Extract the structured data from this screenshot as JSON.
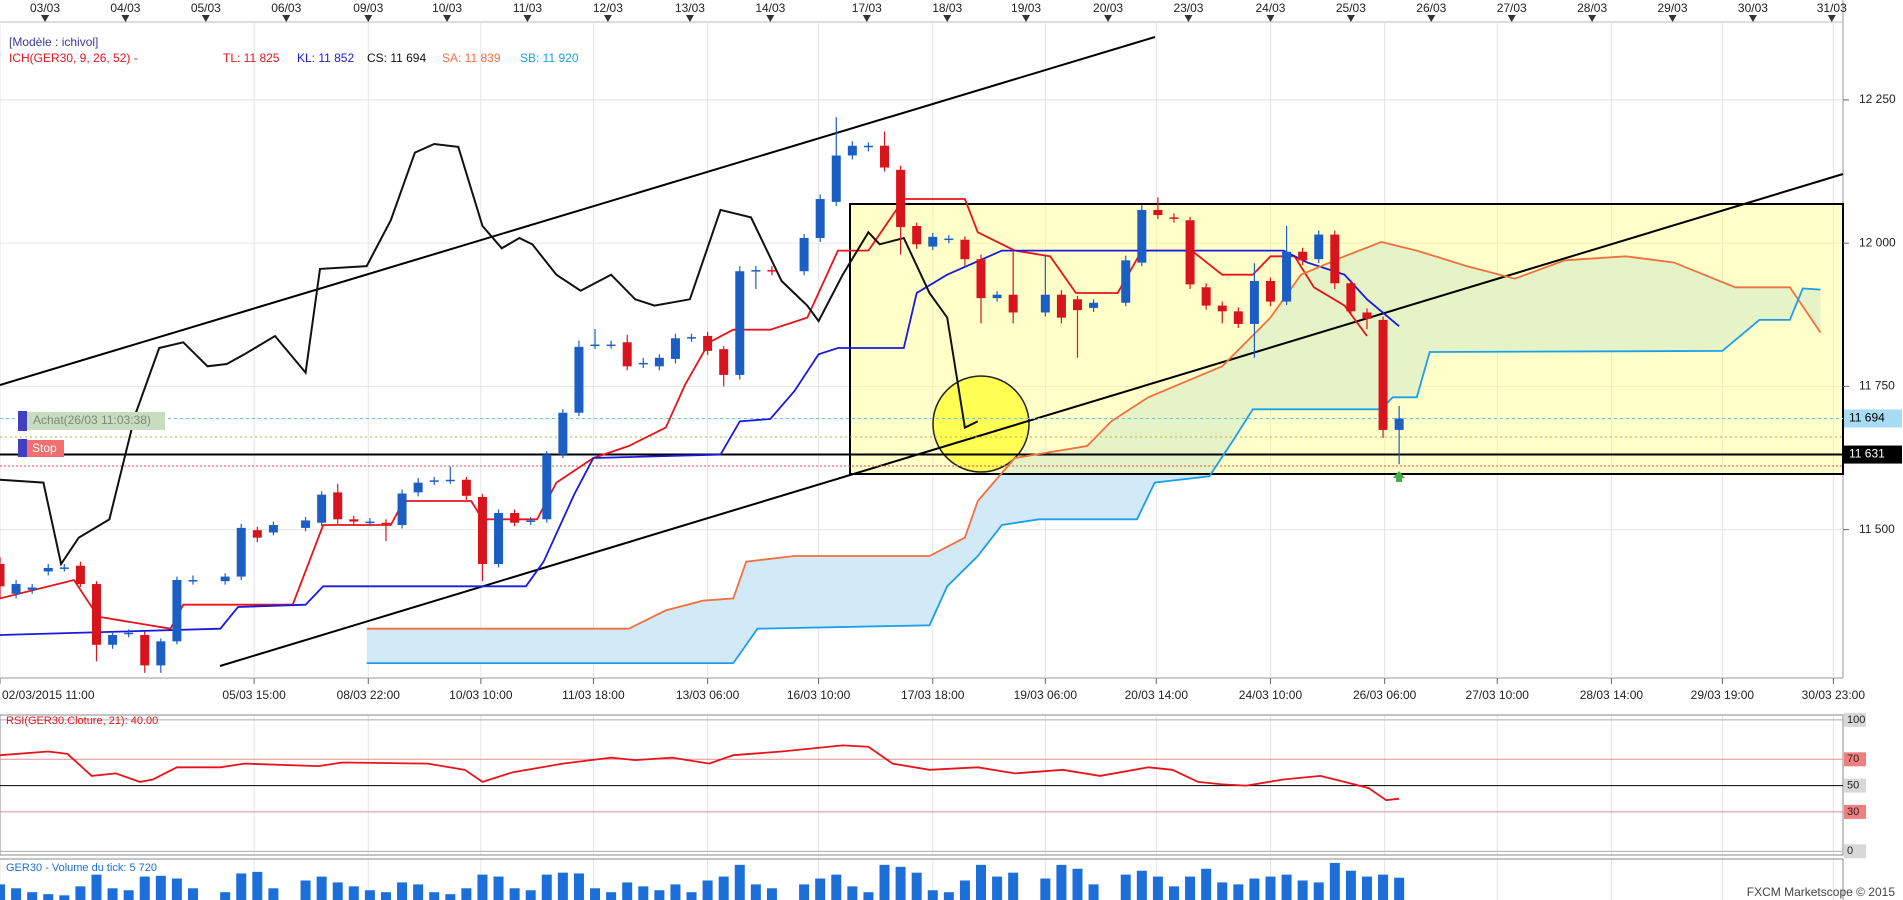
{
  "chart_data": [
    {
      "type": "candlestick",
      "model": "[Modèle : ichivol]",
      "indicator": "ICH(GER30, 9, 26, 52) -",
      "up_color": "#1c5fc4",
      "down_color": "#d8141c",
      "open": [
        11440,
        11388,
        11395,
        11427,
        11433,
        11437,
        11405,
        11299,
        11318,
        11316,
        11263,
        11305,
        11410,
        null,
        11410,
        11418,
        11499,
        11495,
        null,
        11503,
        11512,
        11565,
        11518,
        11512,
        11512,
        11508,
        11565,
        11584,
        11586,
        11587,
        11557,
        11440,
        11529,
        11514,
        11518,
        11631,
        11704,
        11821,
        11823,
        11827,
        11789,
        11785,
        11798,
        11834,
        11838,
        11815,
        11770,
        11951,
        11953,
        null,
        11951,
        12009,
        12072,
        12153,
        12168,
        12170,
        12128,
        12030,
        11994,
        12006,
        12006,
        11972,
        11904,
        11910,
        null,
        11879,
        11910,
        11902,
        11887,
        null,
        11896,
        11966,
        12058,
        12045,
        12040,
        11923,
        11891,
        11881,
        11859,
        11934,
        11898,
        11985,
        11972,
        12015,
        11930,
        11879,
        11866,
        11674
      ],
      "high": [
        11452,
        11412,
        11405,
        11440,
        11440,
        11444,
        11410,
        11322,
        11326,
        11322,
        11310,
        11418,
        11420,
        null,
        11424,
        11510,
        11505,
        11514,
        null,
        11522,
        11567,
        11580,
        11524,
        11520,
        11518,
        11570,
        11590,
        11592,
        11610,
        11592,
        11562,
        11535,
        11535,
        11522,
        11637,
        11710,
        11830,
        11850,
        11830,
        11840,
        11800,
        11806,
        11842,
        11842,
        11845,
        11820,
        11960,
        11960,
        11960,
        null,
        12016,
        12085,
        12220,
        12178,
        12176,
        12195,
        12135,
        12036,
        12018,
        12014,
        12012,
        11980,
        11916,
        11990,
        null,
        11980,
        11918,
        11908,
        11902,
        null,
        11978,
        12066,
        12080,
        12052,
        12046,
        11930,
        11898,
        11888,
        11965,
        11940,
        12030,
        11992,
        12022,
        12022,
        11936,
        11886,
        11872,
        11716
      ],
      "low": [
        11380,
        11380,
        11388,
        11420,
        11427,
        11400,
        11270,
        11292,
        11312,
        11250,
        11250,
        11300,
        11404,
        null,
        11404,
        11412,
        11478,
        11490,
        null,
        11497,
        11506,
        11510,
        11508,
        11506,
        11480,
        11502,
        11558,
        11578,
        11580,
        11552,
        11410,
        11434,
        11506,
        11508,
        11512,
        11625,
        11698,
        11815,
        11816,
        11778,
        11782,
        11778,
        11790,
        11828,
        11805,
        11750,
        11762,
        11920,
        11944,
        null,
        11944,
        12002,
        12065,
        12146,
        12160,
        12125,
        11980,
        11990,
        11988,
        12000,
        11960,
        11860,
        11898,
        11860,
        null,
        11872,
        11860,
        11800,
        11880,
        null,
        11890,
        11960,
        12042,
        12036,
        11920,
        11884,
        11860,
        11852,
        11800,
        11890,
        11892,
        11962,
        11965,
        11920,
        11874,
        11850,
        11660,
        11614
      ],
      "close": [
        11401,
        11405,
        11399,
        11433,
        11434,
        11405,
        11299,
        11316,
        11320,
        11263,
        11305,
        11412,
        11412,
        null,
        11418,
        11503,
        11486,
        11508,
        null,
        11516,
        11561,
        11518,
        11514,
        11514,
        11510,
        11563,
        11582,
        11586,
        11587,
        11559,
        11440,
        11529,
        11512,
        11516,
        11631,
        11704,
        11819,
        11823,
        11823,
        11785,
        11791,
        11800,
        11834,
        11836,
        11812,
        11770,
        11951,
        11953,
        11951,
        null,
        12009,
        12077,
        12153,
        12170,
        12170,
        12132,
        12028,
        11998,
        12011,
        12008,
        11972,
        11904,
        11910,
        11879,
        null,
        11910,
        11870,
        11883,
        11896,
        null,
        11970,
        12058,
        12049,
        12043,
        11928,
        11891,
        11881,
        11859,
        11934,
        11898,
        11985,
        11970,
        12015,
        11930,
        11881,
        11868,
        11674,
        11694
      ],
      "series": [
        {
          "name": "TL: 11 825",
          "color": "#e8141c",
          "x": [
            0,
            4.6,
            6.1,
            10.6,
            11.4,
            18.2,
            20.1,
            24.3,
            25.1,
            29.3,
            30.0,
            33.4,
            34.6,
            36.9,
            39.1,
            41.4,
            42.6,
            44.1,
            45.6,
            47.9,
            50.2,
            52.1,
            54.0,
            56.2,
            60.0,
            60.8,
            63.1,
            65.3,
            66.9,
            69.5,
            71.0,
            74.1,
            76.0,
            77.9,
            79.0,
            80.5,
            81.7,
            83.6,
            85.0
          ],
          "values": [
            11380,
            11412,
            11348,
            11327,
            11369,
            11369,
            11508,
            11508,
            11550,
            11550,
            11518,
            11518,
            11582,
            11625,
            11646,
            11678,
            11753,
            11827,
            11849,
            11849,
            11870,
            11987,
            11987,
            12077,
            12077,
            12019,
            11987,
            11977,
            11913,
            11913,
            11987,
            11987,
            11945,
            11945,
            11977,
            11977,
            11923,
            11891,
            11838
          ]
        },
        {
          "name": "KL: 11 852",
          "color": "#1a1ae0",
          "x": [
            0,
            13.7,
            14.8,
            19.0,
            20.1,
            32.7,
            33.8,
            35.7,
            36.9,
            44.8,
            46.0,
            47.9,
            49.4,
            50.9,
            52.1,
            56.2,
            57.0,
            58.9,
            62.3,
            79.8,
            81.3,
            83.6,
            85.0,
            87.0
          ],
          "values": [
            11316,
            11327,
            11365,
            11369,
            11401,
            11401,
            11444,
            11561,
            11625,
            11631,
            11689,
            11693,
            11742,
            11806,
            11817,
            11817,
            11913,
            11945,
            11987,
            11987,
            11966,
            11945,
            11902,
            11855
          ]
        },
        {
          "name": "CS: 11 694",
          "color": "#111111",
          "x": [
            0,
            2.7,
            3.8,
            4.9,
            6.8,
            8.4,
            9.9,
            11.4,
            12.9,
            14.1,
            15.2,
            17.1,
            19.0,
            19.9,
            22.8,
            24.3,
            25.8,
            27.0,
            28.5,
            30.0,
            31.2,
            32.3,
            33.1,
            34.6,
            36.1,
            38.0,
            39.5,
            40.7,
            42.9,
            44.8,
            46.7,
            48.6,
            50.2,
            50.9,
            52.4,
            54.0,
            54.7,
            56.2,
            57.8,
            58.9,
            60.0,
            60.8
          ],
          "values": [
            11587,
            11582,
            11440,
            11486,
            11518,
            11700,
            11817,
            11827,
            11785,
            11789,
            11806,
            11838,
            11774,
            11955,
            11960,
            12040,
            12158,
            12173,
            12168,
            12030,
            11991,
            12009,
            11998,
            11945,
            11917,
            11945,
            11902,
            11891,
            11902,
            12058,
            12045,
            11934,
            11891,
            11864,
            11945,
            12019,
            11998,
            12009,
            11913,
            11870,
            11678,
            11689
          ]
        },
        {
          "name": "SA: 11 839",
          "color": "#f07040",
          "x": [
            22.8,
            39.1,
            41.4,
            43.7,
            45.6,
            46.4,
            49.4,
            57.8,
            60.0,
            60.8,
            63.1,
            67.6,
            69.1,
            71.4,
            76.0,
            79.0,
            80.9,
            83.6,
            85.9,
            88.1,
            91.2,
            94.2,
            97.3,
            101.1,
            104.1,
            107.9,
            111.3,
            113.2
          ],
          "values": [
            11327,
            11327,
            11359,
            11376,
            11380,
            11444,
            11454,
            11454,
            11486,
            11550,
            11625,
            11646,
            11689,
            11731,
            11785,
            11870,
            11945,
            11977,
            12002,
            11987,
            11960,
            11938,
            11970,
            11977,
            11966,
            11923,
            11923,
            11844
          ]
        },
        {
          "name": "SB: 11 920",
          "color": "#1aa0e8",
          "x": [
            22.8,
            45.6,
            47.1,
            57.8,
            58.9,
            60.8,
            62.3,
            64.6,
            70.7,
            71.8,
            75.2,
            76.7,
            77.9,
            85.9,
            86.6,
            88.1,
            88.9,
            107.1,
            109.4,
            111.3,
            112.1,
            113.2
          ],
          "values": [
            11267,
            11267,
            11327,
            11333,
            11401,
            11454,
            11508,
            11518,
            11518,
            11582,
            11593,
            11657,
            11710,
            11710,
            11731,
            11731,
            11810,
            11812,
            11866,
            11866,
            11921,
            11919
          ]
        }
      ],
      "annotations": [
        "Achat(26/03 11:03:38)",
        "Stop"
      ],
      "price_tags": [
        {
          "value": 11694,
          "label": "11 694"
        },
        {
          "value": 11631,
          "label": "11 631"
        }
      ],
      "xlim": [
        0,
        114.6
      ],
      "ylim": [
        11241,
        12386
      ],
      "yticks": [
        {
          "value": 11500,
          "label": "11 500"
        },
        {
          "value": 11750,
          "label": "11 750"
        },
        {
          "value": 12000,
          "label": "12 000"
        },
        {
          "value": 12250,
          "label": "12 250"
        }
      ],
      "xticks": [
        {
          "value": 2.8,
          "label": "03/03"
        },
        {
          "value": 7.8,
          "label": "04/03"
        },
        {
          "value": 12.8,
          "label": "05/03"
        },
        {
          "value": 17.8,
          "label": "06/03"
        },
        {
          "value": 22.9,
          "label": "09/03"
        },
        {
          "value": 27.8,
          "label": "10/03"
        },
        {
          "value": 32.8,
          "label": "11/03"
        },
        {
          "value": 37.8,
          "label": "12/03"
        },
        {
          "value": 42.9,
          "label": "13/03"
        },
        {
          "value": 47.9,
          "label": "14/03"
        },
        {
          "value": 53.9,
          "label": "17/03"
        },
        {
          "value": 58.9,
          "label": "18/03"
        },
        {
          "value": 63.8,
          "label": "19/03"
        },
        {
          "value": 68.9,
          "label": "20/03"
        },
        {
          "value": 73.9,
          "label": "23/03"
        },
        {
          "value": 79.0,
          "label": "24/03"
        },
        {
          "value": 84.0,
          "label": "25/03"
        },
        {
          "value": 89.0,
          "label": "26/03"
        },
        {
          "value": 94.0,
          "label": "27/03"
        },
        {
          "value": 99.0,
          "label": "28/03"
        },
        {
          "value": 104.0,
          "label": "29/03"
        },
        {
          "value": 109.0,
          "label": "30/03"
        },
        {
          "value": 113.9,
          "label": "31/03"
        }
      ],
      "x2ticks": [
        {
          "value": 0,
          "label": "02/03/2015 11:00"
        },
        {
          "value": 15.8,
          "label": "05/03 15:00"
        },
        {
          "value": 22.9,
          "label": "08/03 22:00"
        },
        {
          "value": 29.9,
          "label": "10/03 10:00"
        },
        {
          "value": 36.9,
          "label": "11/03 18:00"
        },
        {
          "value": 44.0,
          "label": "13/03 06:00"
        },
        {
          "value": 50.9,
          "label": "16/03 10:00"
        },
        {
          "value": 58.0,
          "label": "17/03 18:00"
        },
        {
          "value": 65.0,
          "label": "19/03 06:00"
        },
        {
          "value": 71.9,
          "label": "20/03 14:00"
        },
        {
          "value": 79.0,
          "label": "24/03 10:00"
        },
        {
          "value": 86.1,
          "label": "26/03 06:00"
        },
        {
          "value": 93.1,
          "label": "27/03 10:00"
        },
        {
          "value": 100.2,
          "label": "28/03 14:00"
        },
        {
          "value": 107.1,
          "label": "29/03 19:00"
        },
        {
          "value": 114.0,
          "label": "30/03 23:00"
        }
      ]
    },
    {
      "type": "line",
      "title": "RSI(GER30.Cloture, 21): 40.00",
      "series": [
        {
          "color": "#e8141c",
          "x": [
            0,
            3.0,
            4.2,
            5.7,
            7.2,
            8.7,
            9.5,
            11.0,
            13.7,
            15.2,
            19.8,
            21.3,
            26.6,
            28.9,
            30.0,
            31.9,
            35.0,
            38.0,
            39.5,
            41.8,
            44.1,
            45.6,
            48.6,
            52.4,
            54.0,
            55.5,
            57.8,
            60.8,
            63.1,
            66.1,
            68.4,
            71.4,
            72.9,
            74.5,
            76.0,
            77.5,
            79.8,
            82.1,
            83.6,
            85.1,
            86.2,
            87.0
          ],
          "values": [
            73.1,
            75.9,
            74.1,
            57.4,
            59.3,
            52.8,
            54.6,
            63.9,
            63.9,
            66.7,
            64.8,
            67.6,
            66.7,
            62.0,
            52.8,
            60.2,
            66.7,
            71.3,
            69.4,
            71.3,
            66.7,
            73.1,
            75.9,
            80.6,
            79.6,
            66.7,
            62.0,
            63.9,
            59.3,
            62.0,
            57.4,
            63.9,
            62.0,
            52.8,
            50.9,
            50.0,
            54.6,
            57.4,
            52.8,
            48.1,
            38.9,
            40.0
          ]
        }
      ],
      "xlim": [
        0,
        114.6
      ],
      "ylim": [
        -2.8,
        103.7
      ],
      "yticks": [
        0,
        30,
        50,
        70,
        100
      ],
      "levels": [
        30,
        70
      ]
    },
    {
      "type": "bar",
      "title": "GER30 - Volume du tick: 5 720",
      "color": "#1c6fd8",
      "values": [
        4000,
        3000,
        2000,
        1500,
        1200,
        3500,
        6500,
        3000,
        2500,
        6000,
        6200,
        5500,
        3000,
        null,
        2000,
        6800,
        7200,
        3000,
        null,
        5000,
        6000,
        4500,
        3500,
        2500,
        2000,
        4500,
        4000,
        2000,
        1500,
        3000,
        6500,
        6000,
        3000,
        2500,
        6500,
        7000,
        6800,
        3000,
        2000,
        4500,
        3500,
        2500,
        4000,
        2000,
        5000,
        6000,
        9000,
        4000,
        3000,
        null,
        4000,
        5500,
        6500,
        3500,
        2000,
        9000,
        8500,
        7000,
        2500,
        2000,
        5000,
        9000,
        6000,
        7000,
        null,
        5500,
        9000,
        8000,
        4000,
        null,
        6500,
        7500,
        6000,
        3500,
        6000,
        8000,
        4500,
        4000,
        5500,
        6000,
        6500,
        5000,
        4500,
        9500,
        7500,
        6000,
        6500,
        5720
      ],
      "xlim": [
        0,
        114.6
      ],
      "ylim": [
        0,
        10500
      ]
    }
  ],
  "footer": "FXCM Marketscope © 2015"
}
